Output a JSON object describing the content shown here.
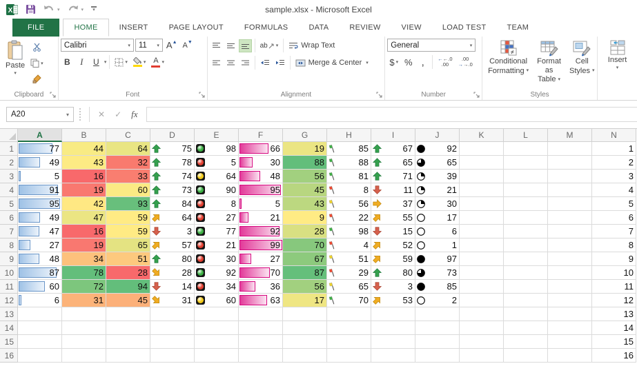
{
  "title_bar": {
    "title": "sample.xlsx - Microsoft Excel"
  },
  "tabs": [
    {
      "label": "FILE"
    },
    {
      "label": "HOME"
    },
    {
      "label": "INSERT"
    },
    {
      "label": "PAGE LAYOUT"
    },
    {
      "label": "FORMULAS"
    },
    {
      "label": "DATA"
    },
    {
      "label": "REVIEW"
    },
    {
      "label": "VIEW"
    },
    {
      "label": "LOAD TEST"
    },
    {
      "label": "TEAM"
    }
  ],
  "active_tab": "HOME",
  "ribbon": {
    "clipboard": {
      "group_label": "Clipboard",
      "paste_label": "Paste"
    },
    "font": {
      "group_label": "Font",
      "font_name": "Calibri",
      "font_size": "11",
      "bold": "B",
      "italic": "I",
      "underline": "U",
      "grow_font": "A",
      "shrink_font": "A",
      "orientation": "ab",
      "font_color_letter": "A"
    },
    "alignment": {
      "group_label": "Alignment",
      "wrap_text": "Wrap Text",
      "merge_center": "Merge & Center"
    },
    "number": {
      "group_label": "Number",
      "format": "General",
      "currency": "$",
      "percent": "%",
      "comma": ",",
      "inc_dec_top": "←.0",
      "inc_dec_bottom": ".00",
      "dec_dec_top": ".00",
      "dec_dec_bottom": "→.0"
    },
    "styles": {
      "group_label": "Styles",
      "conditional_formatting_l1": "Conditional",
      "conditional_formatting_l2": "Formatting",
      "format_table_l1": "Format as",
      "format_table_l2": "Table",
      "cell_styles_l1": "Cell",
      "cell_styles_l2": "Styles"
    },
    "cells": {
      "insert_label": "Insert"
    }
  },
  "formula_bar": {
    "name_box": "A20",
    "function_label": "fx",
    "formula_value": ""
  },
  "colors": {
    "accent_green": "#217346",
    "databar_blue_border": "#6a96c8",
    "databar_blue_fill": "#9fc2e6",
    "databar_pink_border": "#d6077f",
    "databar_pink_fill": "#e23a99",
    "arrow_green": "#35a04e",
    "arrow_yellow": "#f0ac22",
    "arrow_red": "#d6604d",
    "flag_green": "#3faf46",
    "flag_yellow": "#eed32b",
    "flag_red": "#ee4a31",
    "light_green": "#3cb043",
    "light_red": "#e23e2f",
    "light_yellow": "#f2c918"
  },
  "grid": {
    "columns": [
      "A",
      "B",
      "C",
      "D",
      "E",
      "F",
      "G",
      "H",
      "I",
      "J",
      "K",
      "L",
      "M",
      "N"
    ],
    "selected_column": "A",
    "rows": [
      {
        "n": 1,
        "a": 77,
        "b": 44,
        "b_bg": "#F8EB84",
        "c": 64,
        "c_bg": "#E9E583",
        "d": 75,
        "d_icon": "arrow-up",
        "e": 98,
        "e_icon": "light-green",
        "f": 66,
        "g": 19,
        "g_bg": "#EBE583",
        "h": 85,
        "h_icon": "flag-green",
        "i": 67,
        "i_icon": "arrow-up",
        "j": 92,
        "j_icon": "circle-full"
      },
      {
        "n": 2,
        "a": 49,
        "b": 43,
        "b_bg": "#FDEB84",
        "c": 32,
        "c_bg": "#F97A6E",
        "d": 78,
        "d_icon": "arrow-up",
        "e": 5,
        "e_icon": "light-red",
        "f": 30,
        "g": 88,
        "g_bg": "#63BE7B",
        "h": 88,
        "h_icon": "flag-green",
        "i": 65,
        "i_icon": "arrow-up",
        "j": 65,
        "j_icon": "circle-three-quarter"
      },
      {
        "n": 3,
        "a": 5,
        "b": 16,
        "b_bg": "#F8696B",
        "c": 33,
        "c_bg": "#F97E70",
        "d": 74,
        "d_icon": "arrow-up",
        "e": 64,
        "e_icon": "light-yellow",
        "f": 48,
        "g": 56,
        "g_bg": "#A2D07F",
        "h": 81,
        "h_icon": "flag-green",
        "i": 71,
        "i_icon": "arrow-up",
        "j": 39,
        "j_icon": "circle-quarter"
      },
      {
        "n": 4,
        "a": 91,
        "b": 19,
        "b_bg": "#F97870",
        "c": 60,
        "c_bg": "#FBEA84",
        "d": 73,
        "d_icon": "arrow-up",
        "e": 90,
        "e_icon": "light-green",
        "f": 95,
        "g": 45,
        "g_bg": "#B8D680",
        "h": 8,
        "h_icon": "flag-red",
        "i": 11,
        "i_icon": "arrow-down",
        "j": 21,
        "j_icon": "circle-quarter"
      },
      {
        "n": 5,
        "a": 95,
        "b": 42,
        "b_bg": "#FFE883",
        "c": 93,
        "c_bg": "#68BF7C",
        "d": 84,
        "d_icon": "arrow-up",
        "e": 8,
        "e_icon": "light-red",
        "f": 5,
        "g": 43,
        "g_bg": "#BCD880",
        "h": 56,
        "h_icon": "flag-yellow",
        "i": 37,
        "i_icon": "arrow-right",
        "j": 30,
        "j_icon": "circle-quarter"
      },
      {
        "n": 6,
        "a": 49,
        "b": 47,
        "b_bg": "#EBE583",
        "c": 59,
        "c_bg": "#FFEB84",
        "d": 64,
        "d_icon": "arrow-diag-up",
        "e": 27,
        "e_icon": "light-red",
        "f": 21,
        "g": 9,
        "g_bg": "#FFEB84",
        "h": 22,
        "h_icon": "flag-red",
        "i": 55,
        "i_icon": "arrow-diag-up",
        "j": 17,
        "j_icon": "circle-empty"
      },
      {
        "n": 7,
        "a": 47,
        "b": 16,
        "b_bg": "#F8696B",
        "c": 59,
        "c_bg": "#FFEB84",
        "d": 3,
        "d_icon": "arrow-down",
        "e": 77,
        "e_icon": "light-green",
        "f": 92,
        "g": 28,
        "g_bg": "#D9E082",
        "h": 98,
        "h_icon": "flag-green",
        "i": 15,
        "i_icon": "arrow-down",
        "j": 6,
        "j_icon": "circle-empty"
      },
      {
        "n": 8,
        "a": 27,
        "b": 19,
        "b_bg": "#F97870",
        "c": 65,
        "c_bg": "#E4E382",
        "d": 57,
        "d_icon": "arrow-diag-up",
        "e": 21,
        "e_icon": "light-red",
        "f": 99,
        "g": 70,
        "g_bg": "#87C87D",
        "h": 4,
        "h_icon": "flag-red",
        "i": 52,
        "i_icon": "arrow-diag-up",
        "j": 1,
        "j_icon": "circle-empty"
      },
      {
        "n": 9,
        "a": 48,
        "b": 34,
        "b_bg": "#FDC17C",
        "c": 51,
        "c_bg": "#FDC97E",
        "d": 80,
        "d_icon": "arrow-up",
        "e": 30,
        "e_icon": "light-red",
        "f": 27,
        "g": 67,
        "g_bg": "#8DCA7D",
        "h": 51,
        "h_icon": "flag-yellow",
        "i": 59,
        "i_icon": "arrow-diag-up",
        "j": 97,
        "j_icon": "circle-full"
      },
      {
        "n": 10,
        "a": 87,
        "b": 78,
        "b_bg": "#63BE7B",
        "c": 28,
        "c_bg": "#F8696B",
        "d": 28,
        "d_icon": "arrow-diag-down",
        "e": 92,
        "e_icon": "light-green",
        "f": 70,
        "g": 87,
        "g_bg": "#65BF7B",
        "h": 29,
        "h_icon": "flag-red",
        "i": 80,
        "i_icon": "arrow-up",
        "j": 73,
        "j_icon": "circle-three-quarter"
      },
      {
        "n": 11,
        "a": 60,
        "b": 72,
        "b_bg": "#7DC67D",
        "c": 94,
        "c_bg": "#63BE7B",
        "d": 14,
        "d_icon": "arrow-down",
        "e": 34,
        "e_icon": "light-red",
        "f": 36,
        "g": 56,
        "g_bg": "#A2D07F",
        "h": 65,
        "h_icon": "flag-yellow",
        "i": 3,
        "i_icon": "arrow-down",
        "j": 85,
        "j_icon": "circle-full"
      },
      {
        "n": 12,
        "a": 6,
        "b": 31,
        "b_bg": "#FCB379",
        "c": 45,
        "c_bg": "#FCB079",
        "d": 31,
        "d_icon": "arrow-diag-down",
        "e": 60,
        "e_icon": "light-yellow",
        "f": 63,
        "g": 17,
        "g_bg": "#EFE683",
        "h": 70,
        "h_icon": "flag-green",
        "i": 53,
        "i_icon": "arrow-diag-up",
        "j": 2,
        "j_icon": "circle-empty"
      },
      {
        "n": 13
      },
      {
        "n": 14
      },
      {
        "n": 15
      },
      {
        "n": 16
      }
    ]
  }
}
